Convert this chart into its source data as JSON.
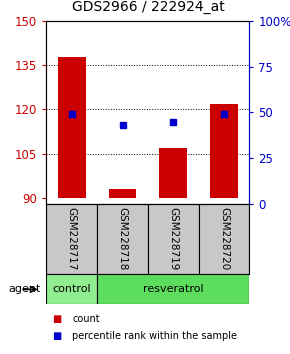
{
  "title": "GDS2966 / 222924_at",
  "samples": [
    "GSM228717",
    "GSM228718",
    "GSM228719",
    "GSM228720"
  ],
  "bar_values": [
    138,
    93,
    107,
    122
  ],
  "bar_baseline": 90,
  "percentile_values": [
    49,
    43,
    45,
    49
  ],
  "bar_color": "#cc0000",
  "percentile_color": "#0000cc",
  "ylim_left": [
    88,
    150
  ],
  "ylim_right": [
    0,
    100
  ],
  "yticks_left": [
    90,
    105,
    120,
    135,
    150
  ],
  "yticks_right": [
    0,
    25,
    50,
    75,
    100
  ],
  "sample_box_color": "#c8c8c8",
  "control_color": "#90ee90",
  "resveratrol_color": "#5ddd5d",
  "agent_label": "agent",
  "legend_count_label": "count",
  "legend_pct_label": "percentile rank within the sample",
  "background_color": "#ffffff",
  "title_fontsize": 10,
  "tick_fontsize": 8.5,
  "sample_fontsize": 7.5,
  "label_fontsize": 8
}
